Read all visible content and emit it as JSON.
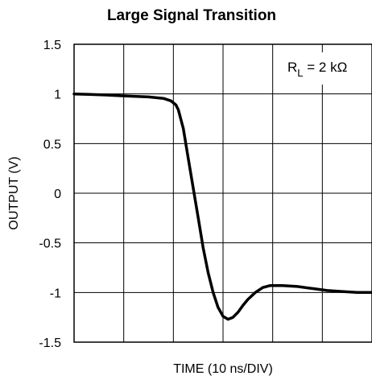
{
  "chart_data": {
    "type": "line",
    "title": "Large Signal Transition",
    "xlabel": "TIME (10 ns/DIV)",
    "ylabel": "OUTPUT (V)",
    "ylim": [
      -1.5,
      1.5
    ],
    "yticks": [
      "1.5",
      "1",
      "0.5",
      "0",
      "-0.5",
      "-1",
      "-1.5"
    ],
    "ytick_values": [
      1.5,
      1,
      0.5,
      0,
      -0.5,
      -1,
      -1.5
    ],
    "x_divisions": 6,
    "grid": true,
    "annotation": {
      "main": "R",
      "sub": "L",
      "rest": " = 2 kΩ"
    },
    "series": [
      {
        "color": "#000000",
        "x": [
          0,
          0.3,
          0.6,
          1.0,
          1.5,
          1.8,
          1.95,
          2.05,
          2.1,
          2.2,
          2.3,
          2.4,
          2.5,
          2.6,
          2.7,
          2.8,
          2.9,
          3.0,
          3.1,
          3.2,
          3.3,
          3.4,
          3.5,
          3.65,
          3.8,
          3.95,
          4.2,
          4.5,
          4.8,
          5.1,
          5.4,
          5.7,
          6.0
        ],
        "y": [
          1.0,
          0.995,
          0.99,
          0.98,
          0.97,
          0.955,
          0.93,
          0.89,
          0.84,
          0.65,
          0.35,
          0.05,
          -0.25,
          -0.55,
          -0.8,
          -1.0,
          -1.15,
          -1.24,
          -1.27,
          -1.25,
          -1.2,
          -1.13,
          -1.07,
          -1.0,
          -0.95,
          -0.93,
          -0.93,
          -0.94,
          -0.96,
          -0.98,
          -0.99,
          -1.0,
          -1.0
        ]
      }
    ]
  }
}
